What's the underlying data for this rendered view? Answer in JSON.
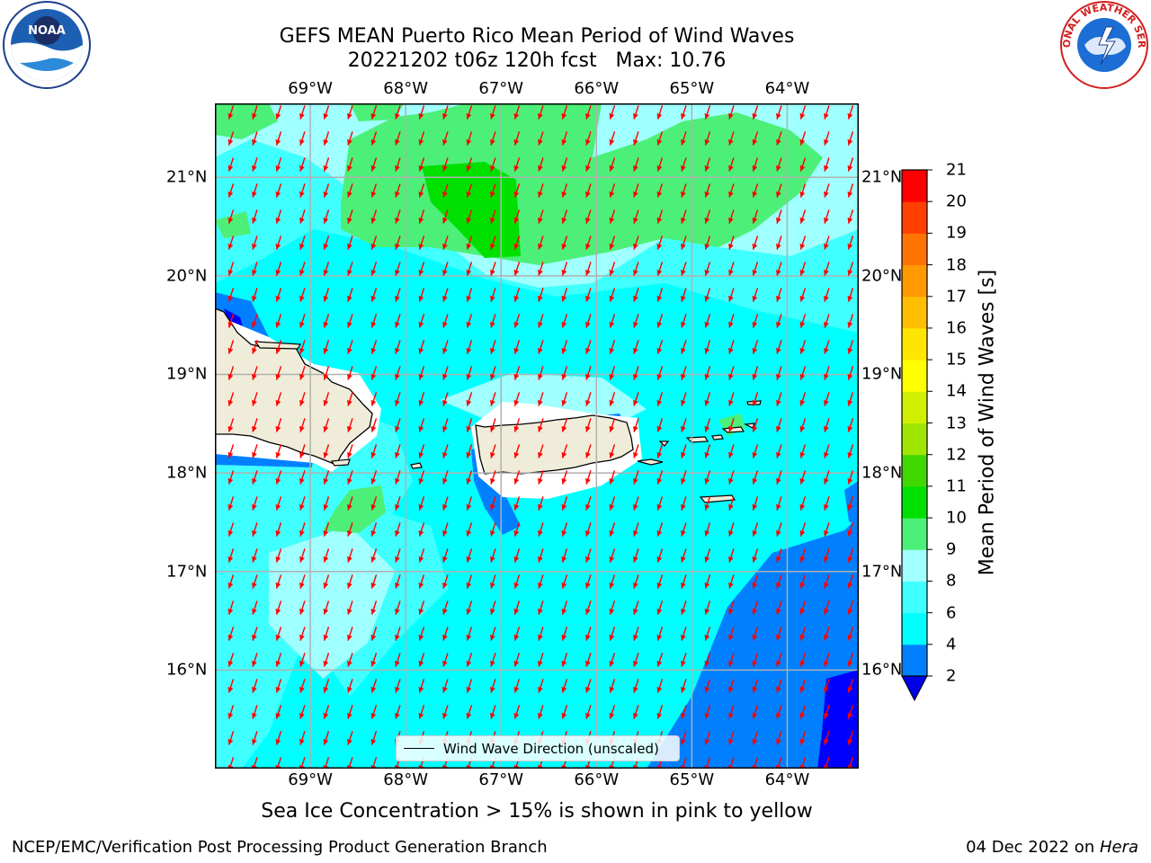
{
  "header": {
    "title_line1": "GEFS MEAN Puerto Rico Mean Period of Wind Waves",
    "title_line2": "20221202 t06z 120h fcst   Max: 10.76"
  },
  "logos": {
    "left": "noara-logo",
    "right": "nws-logo",
    "right_text": "NATIONAL WEATHER SERVICE",
    "left_text": "NOAA"
  },
  "map": {
    "lon_labels": [
      "69°W",
      "68°W",
      "67°W",
      "66°W",
      "65°W",
      "64°W"
    ],
    "lat_labels": [
      "21°N",
      "20°N",
      "19°N",
      "18°N",
      "17°N",
      "16°N"
    ],
    "lon_range": [
      -70.0,
      -63.25
    ],
    "lat_range": [
      15.0,
      21.75
    ],
    "legend_label": "Wind Wave Direction (unscaled)",
    "arrow_color": "#ff0000",
    "land_color": "#efedd9"
  },
  "colorbar": {
    "label": "Mean Period of Wind Waves [s]",
    "ticks": [
      "2",
      "4",
      "6",
      "8",
      "9",
      "10",
      "11",
      "12",
      "13",
      "14",
      "15",
      "16",
      "17",
      "18",
      "19",
      "20",
      "21"
    ],
    "colors": [
      "#0000ff",
      "#0080ff",
      "#00ffff",
      "#40ffff",
      "#a0ffff",
      "#4cf078",
      "#00e000",
      "#40d800",
      "#a0e600",
      "#d0f000",
      "#ffff00",
      "#ffe600",
      "#ffbf00",
      "#ff9900",
      "#ff7300",
      "#ff4000",
      "#ff0000"
    ],
    "under_color": "#0000e6"
  },
  "note": "Sea Ice Concentration > 15% is shown in pink to yellow",
  "footer": {
    "left": "NCEP/EMC/Verification Post Processing Product Generation Branch",
    "right_prefix": "04 Dec 2022 on ",
    "right_machine": "Hera"
  }
}
